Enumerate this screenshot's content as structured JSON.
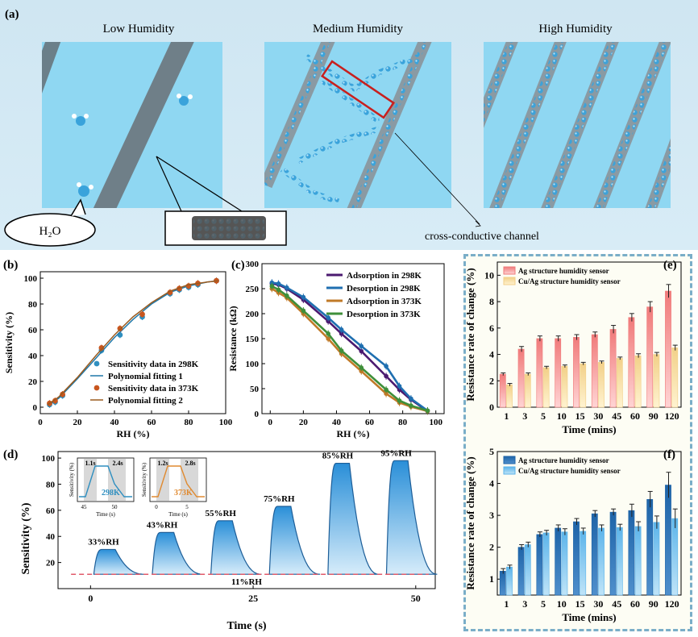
{
  "panel_a": {
    "label": "(a)",
    "titles": [
      "Low Humidity",
      "Medium Humidity",
      "High Humidity"
    ],
    "bubble": "H₂O",
    "channel": "cross-conductive channel"
  },
  "chart_data": [
    {
      "id": "b",
      "panel_label": "(b)",
      "type": "scatter",
      "xlabel": "RH (%)",
      "ylabel": "Sensitivity (%)",
      "xlim": [
        0,
        100
      ],
      "ylim": [
        -5,
        105
      ],
      "xticks": [
        0,
        20,
        40,
        60,
        80,
        100
      ],
      "yticks": [
        0,
        20,
        40,
        60,
        80,
        100
      ],
      "series": [
        {
          "name": "Sensitivity data in 298K",
          "color": "#2f8fc0",
          "x": [
            5,
            8,
            12,
            33,
            43,
            55,
            70,
            75,
            80,
            85,
            95
          ],
          "y": [
            2,
            4,
            9,
            44,
            56,
            70,
            88,
            91,
            93,
            95,
            98
          ]
        },
        {
          "name": "Polynomial fitting 1",
          "color": "#1f77a8",
          "x": [
            4,
            10,
            20,
            30,
            40,
            50,
            60,
            70,
            80,
            90,
            96
          ],
          "y": [
            1,
            7,
            22,
            38,
            54,
            68,
            80,
            89,
            94,
            97,
            98
          ]
        },
        {
          "name": "Sensitivity data in 373K",
          "color": "#c8561e",
          "x": [
            5,
            8,
            12,
            33,
            43,
            55,
            70,
            75,
            80,
            85,
            95
          ],
          "y": [
            3,
            5,
            10,
            46,
            61,
            72,
            89,
            92,
            94,
            96,
            98
          ]
        },
        {
          "name": "Polynomial fitting 2",
          "color": "#9a5a1e",
          "x": [
            4,
            10,
            20,
            30,
            40,
            50,
            60,
            70,
            80,
            90,
            96
          ],
          "y": [
            2,
            8,
            23,
            40,
            56,
            70,
            81,
            90,
            95,
            97,
            98
          ]
        }
      ]
    },
    {
      "id": "c",
      "panel_label": "(c)",
      "type": "line",
      "xlabel": "RH (%)",
      "ylabel": "Resistance (kΩ)",
      "xlim": [
        -5,
        105
      ],
      "ylim": [
        0,
        300
      ],
      "xticks": [
        0,
        20,
        40,
        60,
        80,
        100
      ],
      "yticks": [
        0,
        50,
        100,
        150,
        200,
        250,
        300
      ],
      "series": [
        {
          "name": "Adsorption in 298K",
          "color": "#4b1a70",
          "x": [
            1,
            5,
            10,
            20,
            35,
            43,
            55,
            70,
            78,
            85,
            95
          ],
          "y": [
            260,
            258,
            250,
            228,
            185,
            160,
            125,
            75,
            48,
            28,
            5
          ]
        },
        {
          "name": "Desorption in 298K",
          "color": "#1f6fb0",
          "x": [
            1,
            5,
            10,
            20,
            35,
            43,
            55,
            70,
            78,
            85,
            95
          ],
          "y": [
            262,
            260,
            252,
            233,
            192,
            168,
            135,
            95,
            55,
            30,
            6
          ]
        },
        {
          "name": "Adsorption in 373K",
          "color": "#c07a28",
          "x": [
            1,
            5,
            10,
            20,
            35,
            43,
            55,
            70,
            78,
            85,
            95
          ],
          "y": [
            250,
            242,
            232,
            200,
            150,
            120,
            85,
            40,
            22,
            14,
            5
          ]
        },
        {
          "name": "Desorption in 373K",
          "color": "#3f8f3a",
          "x": [
            1,
            5,
            10,
            20,
            35,
            43,
            55,
            70,
            78,
            85,
            95
          ],
          "y": [
            255,
            248,
            236,
            206,
            160,
            126,
            92,
            48,
            26,
            16,
            6
          ]
        }
      ]
    },
    {
      "id": "d",
      "panel_label": "(d)",
      "type": "area",
      "xlabel": "Time (s)",
      "ylabel": "Sensitivity (%)",
      "xlim": [
        -5,
        53
      ],
      "ylim": [
        0,
        105
      ],
      "xticks": [
        0,
        25,
        50
      ],
      "yticks": [
        20,
        40,
        60,
        80,
        100
      ],
      "baseline": {
        "value": 11,
        "label": "11%RH"
      },
      "pulses": [
        {
          "start": 0.5,
          "peak": 30,
          "label": "33%RH"
        },
        {
          "start": 9.5,
          "peak": 43,
          "label": "43%RH"
        },
        {
          "start": 18.5,
          "peak": 52,
          "label": "55%RH"
        },
        {
          "start": 27.5,
          "peak": 63,
          "label": "75%RH"
        },
        {
          "start": 36.5,
          "peak": 96,
          "label": "85%RH"
        },
        {
          "start": 45.5,
          "peak": 98,
          "label": "95%RH"
        }
      ],
      "insets": [
        {
          "temp": "298K",
          "ylabel": "Sensitivity (%)",
          "xlabel": "Time (s)",
          "xticks": [
            "45",
            "50"
          ],
          "resp": "1.1s",
          "rec": "2.4s",
          "color": "#2f8fc0"
        },
        {
          "temp": "373K",
          "ylabel": "Sensitivity (%)",
          "xlabel": "Time (s)",
          "xticks": [
            "0",
            "5"
          ],
          "resp": "1.2s",
          "rec": "2.8s",
          "color": "#e08a30"
        }
      ]
    },
    {
      "id": "e",
      "panel_label": "(e)",
      "type": "bar",
      "xlabel": "Time (mins)",
      "ylabel": "Resistance rate of change (%)",
      "ylim": [
        0,
        11
      ],
      "yticks": [
        0,
        2,
        4,
        6,
        8,
        10
      ],
      "categories": [
        "1",
        "3",
        "5",
        "10",
        "15",
        "30",
        "45",
        "60",
        "90",
        "120"
      ],
      "series": [
        {
          "name": "Ag structure humidity sensor",
          "color": "#f07a7a",
          "values": [
            2.5,
            4.4,
            5.2,
            5.2,
            5.3,
            5.5,
            5.9,
            6.8,
            7.6,
            8.8
          ],
          "errors": [
            0.1,
            0.2,
            0.2,
            0.2,
            0.2,
            0.2,
            0.3,
            0.3,
            0.4,
            0.5
          ]
        },
        {
          "name": "Cu/Ag structure humidity sensor",
          "color": "#f2d088",
          "values": [
            1.7,
            2.5,
            3.0,
            3.1,
            3.3,
            3.4,
            3.7,
            3.9,
            4.0,
            4.5
          ],
          "errors": [
            0.1,
            0.1,
            0.1,
            0.1,
            0.1,
            0.1,
            0.1,
            0.15,
            0.15,
            0.2
          ]
        }
      ]
    },
    {
      "id": "f",
      "panel_label": "(f)",
      "type": "bar",
      "xlabel": "Time (mins)",
      "ylabel": "Resistance rate of change (%)",
      "ylim": [
        0.5,
        5
      ],
      "yticks": [
        1,
        2,
        3,
        4,
        5
      ],
      "categories": [
        "1",
        "3",
        "5",
        "10",
        "15",
        "30",
        "45",
        "60",
        "90",
        "120"
      ],
      "series": [
        {
          "name": "Ag structure humidity sensor",
          "color": "#1e64a8",
          "values": [
            1.25,
            2.0,
            2.4,
            2.6,
            2.8,
            3.05,
            3.1,
            3.15,
            3.5,
            3.95
          ],
          "errors": [
            0.08,
            0.08,
            0.08,
            0.1,
            0.1,
            0.1,
            0.1,
            0.2,
            0.25,
            0.4
          ]
        },
        {
          "name": "Cu/Ag structure humidity sensor",
          "color": "#5cb4ea",
          "values": [
            1.38,
            2.08,
            2.45,
            2.48,
            2.5,
            2.6,
            2.62,
            2.65,
            2.78,
            2.9
          ],
          "errors": [
            0.06,
            0.08,
            0.08,
            0.1,
            0.1,
            0.1,
            0.1,
            0.15,
            0.2,
            0.3
          ]
        }
      ]
    }
  ]
}
